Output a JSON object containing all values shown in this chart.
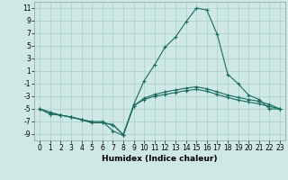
{
  "title": "",
  "xlabel": "Humidex (Indice chaleur)",
  "background_color": "#cde8e5",
  "grid_color": "#aacfcb",
  "line_color": "#1a6b5e",
  "xlim": [
    -0.5,
    23.5
  ],
  "ylim": [
    -10,
    12
  ],
  "yticks": [
    -9,
    -7,
    -5,
    -3,
    -1,
    1,
    3,
    5,
    7,
    9,
    11
  ],
  "xticks": [
    0,
    1,
    2,
    3,
    4,
    5,
    6,
    7,
    8,
    9,
    10,
    11,
    12,
    13,
    14,
    15,
    16,
    17,
    18,
    19,
    20,
    21,
    22,
    23
  ],
  "line1_x": [
    0,
    1,
    2,
    3,
    4,
    5,
    6,
    7,
    8,
    9,
    10,
    11,
    12,
    13,
    14,
    15,
    16,
    17,
    18,
    19,
    20,
    21,
    22,
    23
  ],
  "line1_y": [
    -5,
    -5.5,
    -6.0,
    -6.3,
    -6.7,
    -7.0,
    -7.0,
    -8.5,
    -9.2,
    -4.3,
    -0.5,
    2.0,
    4.8,
    6.4,
    8.8,
    11.0,
    10.7,
    6.8,
    0.5,
    -1.0,
    -2.8,
    -3.5,
    -5.0,
    -5.0
  ],
  "line2_x": [
    0,
    1,
    2,
    3,
    4,
    5,
    6,
    7,
    8,
    9,
    10,
    11,
    12,
    13,
    14,
    15,
    16,
    17,
    18,
    19,
    20,
    21,
    22,
    23
  ],
  "line2_y": [
    -5,
    -5.8,
    -6.0,
    -6.3,
    -6.7,
    -7.2,
    -7.2,
    -7.5,
    -9.1,
    -4.5,
    -3.3,
    -2.7,
    -2.3,
    -2.0,
    -1.7,
    -1.5,
    -1.8,
    -2.3,
    -2.8,
    -3.2,
    -3.5,
    -3.8,
    -4.3,
    -5.0
  ],
  "line3_x": [
    0,
    1,
    2,
    3,
    4,
    5,
    6,
    7,
    8,
    9,
    10,
    11,
    12,
    13,
    14,
    15,
    16,
    17,
    18,
    19,
    20,
    21,
    22,
    23
  ],
  "line3_y": [
    -5,
    -5.8,
    -6.0,
    -6.3,
    -6.7,
    -7.2,
    -7.2,
    -7.5,
    -9.1,
    -4.5,
    -3.5,
    -3.0,
    -2.7,
    -2.4,
    -2.1,
    -1.9,
    -2.2,
    -2.7,
    -3.2,
    -3.6,
    -3.9,
    -4.2,
    -4.6,
    -5.0
  ],
  "marker": "+",
  "markersize": 3,
  "linewidth": 0.8,
  "xlabel_fontsize": 6.5,
  "tick_fontsize": 5.5
}
